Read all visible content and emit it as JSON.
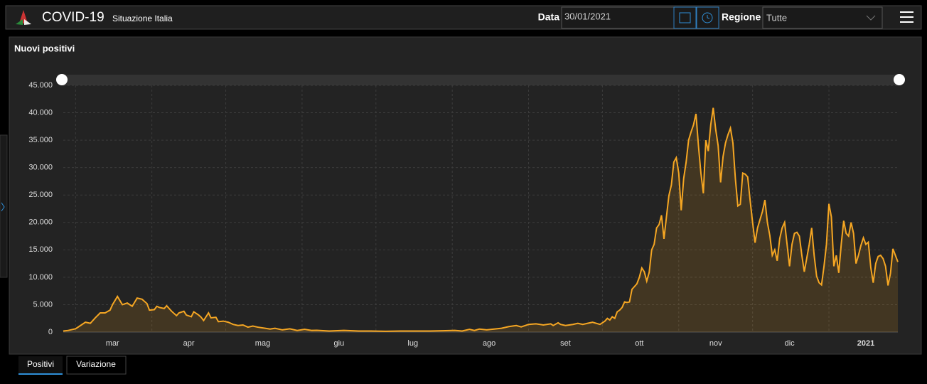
{
  "header": {
    "title": "COVID-19",
    "subtitle": "Situazione Italia",
    "date_label": "Data",
    "date_value": "30/01/2021",
    "region_label": "Regione",
    "region_value": "Tutte"
  },
  "chart_data": {
    "type": "area",
    "title": "Nuovi positivi",
    "color": "#f5a623",
    "grid": true,
    "x": [
      1,
      3,
      6,
      8,
      10,
      12,
      14,
      16,
      18,
      20,
      21,
      23,
      25,
      27,
      29,
      31,
      33,
      35,
      36,
      38,
      39,
      40,
      42,
      43,
      45,
      47,
      48,
      50,
      51,
      53,
      54,
      56,
      57,
      58,
      60,
      61,
      63,
      64,
      66,
      68,
      70,
      72,
      74,
      76,
      78,
      80,
      83,
      85,
      87,
      90,
      93,
      96,
      99,
      102,
      104,
      109,
      115,
      121,
      126,
      132,
      138,
      144,
      150,
      155,
      160,
      163,
      166,
      168,
      170,
      173,
      176,
      179,
      182,
      185,
      187,
      190,
      193,
      196,
      199,
      200,
      202,
      203,
      205,
      208,
      210,
      212,
      214,
      216,
      219,
      221,
      222,
      223,
      224,
      225,
      226,
      227,
      228,
      229,
      230,
      231,
      232,
      233,
      234,
      235,
      236,
      237,
      238,
      239,
      240,
      241,
      242,
      243,
      244,
      245,
      246,
      247,
      248,
      249,
      250,
      251,
      252,
      253,
      254,
      255,
      256,
      257,
      258,
      259,
      260,
      261,
      262,
      263,
      264,
      265,
      266,
      267,
      268,
      269,
      270,
      271,
      272,
      273,
      274,
      275,
      276,
      277,
      278,
      279,
      280,
      281,
      282,
      283,
      284,
      285,
      286,
      287,
      288,
      289,
      290,
      291,
      292,
      293,
      294,
      295,
      296,
      297,
      298,
      299,
      300,
      301,
      302,
      303,
      304,
      305,
      306,
      307,
      308,
      309,
      310,
      311,
      312,
      313,
      314,
      315,
      316,
      317,
      318,
      319,
      320,
      321,
      322,
      323,
      324,
      325,
      326,
      327,
      328,
      329,
      330,
      331,
      332,
      333,
      334,
      335,
      336,
      337,
      338,
      339,
      340
    ],
    "values": [
      200,
      300,
      600,
      1200,
      1800,
      1600,
      2600,
      3500,
      3500,
      4000,
      5000,
      6500,
      5000,
      5300,
      4700,
      6200,
      6000,
      5200,
      4000,
      4100,
      4700,
      4500,
      4300,
      4800,
      3800,
      3000,
      3500,
      3800,
      3100,
      2800,
      3700,
      3100,
      2700,
      2100,
      3500,
      2600,
      2700,
      1900,
      2000,
      1800,
      1400,
      1200,
      1300,
      900,
      1100,
      900,
      700,
      550,
      700,
      400,
      600,
      300,
      500,
      300,
      330,
      200,
      300,
      200,
      200,
      150,
      200,
      200,
      200,
      250,
      300,
      200,
      500,
      300,
      550,
      400,
      550,
      700,
      1000,
      1200,
      950,
      1400,
      1500,
      1300,
      1500,
      1200,
      1700,
      1400,
      1200,
      1400,
      1600,
      1400,
      1600,
      1800,
      1400,
      2000,
      2500,
      2200,
      2800,
      2500,
      3700,
      4000,
      4500,
      5500,
      5400,
      5500,
      7800,
      8300,
      8800,
      10000,
      11700,
      11000,
      9300,
      10900,
      15000,
      16000,
      19000,
      19600,
      21300,
      17000,
      21000,
      24900,
      26800,
      31000,
      31800,
      29000,
      22200,
      28000,
      31000,
      35000,
      36500,
      37800,
      39800,
      34000,
      29000,
      25300,
      35000,
      33000,
      37800,
      40900,
      37000,
      34000,
      27300,
      32000,
      34500,
      36000,
      37200,
      34500,
      28000,
      23000,
      23300,
      29000,
      28800,
      28300,
      24000,
      20000,
      16300,
      19000,
      20500,
      22000,
      24100,
      20000,
      17600,
      14000,
      15000,
      13000,
      17000,
      19000,
      20000,
      16000,
      12000,
      16000,
      18000,
      18200,
      17500,
      14000,
      11000,
      13500,
      16000,
      19000,
      14000,
      10200,
      9000,
      8600,
      12000,
      16000,
      23400,
      21000,
      12000,
      14000,
      10800,
      16000,
      20300,
      18000,
      17500,
      20000,
      18000,
      12500,
      14000,
      15800,
      17200,
      16000,
      16400,
      11800,
      9000,
      12500,
      13800,
      14000,
      13400,
      12000,
      8500,
      10700,
      15200,
      14000,
      12800
    ],
    "xlim": [
      1,
      340
    ],
    "xticks": [
      {
        "value": 6,
        "label": "mar"
      },
      {
        "value": 37,
        "label": "apr"
      },
      {
        "value": 67,
        "label": "mag"
      },
      {
        "value": 98,
        "label": "giu"
      },
      {
        "value": 128,
        "label": "lug"
      },
      {
        "value": 159,
        "label": "ago"
      },
      {
        "value": 190,
        "label": "set"
      },
      {
        "value": 220,
        "label": "ott"
      },
      {
        "value": 251,
        "label": "nov"
      },
      {
        "value": 281,
        "label": "dic"
      },
      {
        "value": 312,
        "label": "2021"
      }
    ],
    "ylim": [
      0,
      45000
    ],
    "yticks": [
      0,
      {
        "value": 5000,
        "label": "5.000"
      },
      {
        "value": 10000,
        "label": "10.000"
      },
      {
        "value": 15000,
        "label": "15.000"
      },
      {
        "value": 20000,
        "label": "20.000"
      },
      {
        "value": 25000,
        "label": "25.000"
      },
      {
        "value": 30000,
        "label": "30.000"
      },
      {
        "value": 35000,
        "label": "35.000"
      },
      {
        "value": 40000,
        "label": "40.000"
      },
      {
        "value": 45000,
        "label": "45.000"
      }
    ]
  },
  "tabs": [
    "Positivi",
    "Variazione"
  ]
}
